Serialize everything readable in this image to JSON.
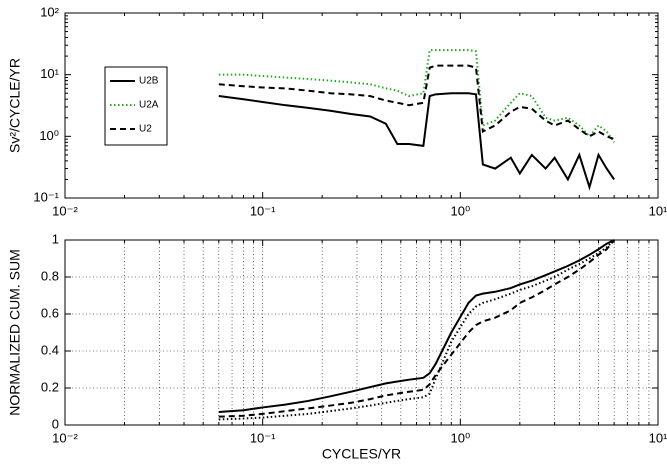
{
  "chart_data": [
    {
      "type": "line",
      "xlog": true,
      "ylog": true,
      "ylabel": "Sv²/CYCLE/YR",
      "x": [
        0.06,
        0.08,
        0.1,
        0.13,
        0.17,
        0.22,
        0.28,
        0.35,
        0.42,
        0.48,
        0.55,
        0.65,
        0.7,
        0.75,
        0.9,
        1.1,
        1.2,
        1.3,
        1.5,
        1.8,
        2.0,
        2.3,
        2.7,
        3.0,
        3.5,
        4.0,
        4.5,
        5.0,
        5.5,
        6.0
      ],
      "series": [
        {
          "name": "U2B",
          "color": "#000000",
          "style": "solid",
          "values": [
            4.5,
            4.0,
            3.6,
            3.2,
            2.9,
            2.6,
            2.3,
            2.1,
            1.6,
            0.75,
            0.75,
            0.7,
            4.5,
            4.8,
            5.0,
            5.0,
            4.8,
            0.35,
            0.3,
            0.45,
            0.25,
            0.5,
            0.3,
            0.45,
            0.2,
            0.5,
            0.15,
            0.5,
            0.3,
            0.2
          ]
        },
        {
          "name": "U2A",
          "color": "#22a822",
          "style": "dotted",
          "values": [
            10,
            10,
            9.5,
            9,
            8.5,
            8,
            7.5,
            7,
            6,
            5.5,
            4.5,
            5,
            25,
            25,
            25,
            25,
            24,
            1.5,
            1.8,
            3.5,
            5,
            4.5,
            2,
            1.8,
            2,
            1.5,
            1,
            1.5,
            1.2,
            0.8
          ]
        },
        {
          "name": "U2",
          "color": "#000000",
          "style": "dashed",
          "values": [
            7,
            6.5,
            6.2,
            6,
            5.5,
            5,
            4.8,
            4.5,
            3.8,
            3.5,
            3.2,
            3.5,
            13,
            14,
            14,
            14,
            13,
            1.2,
            1.5,
            2.5,
            3,
            2.8,
            1.8,
            1.5,
            1.8,
            1.3,
            1.0,
            1.2,
            1.0,
            0.9
          ]
        }
      ],
      "xlim": [
        0.01,
        10
      ],
      "xticks": [
        {
          "value": 0.01,
          "label": "10⁻²"
        },
        {
          "value": 0.1,
          "label": "10⁻¹"
        },
        {
          "value": 1,
          "label": "10⁰"
        },
        {
          "value": 10,
          "label": "10¹"
        }
      ],
      "xminorticks": [
        0.02,
        0.03,
        0.04,
        0.05,
        0.06,
        0.07,
        0.08,
        0.09,
        0.2,
        0.3,
        0.4,
        0.5,
        0.6,
        0.7,
        0.8,
        0.9,
        2,
        3,
        4,
        5,
        6,
        7,
        8,
        9
      ],
      "ylim": [
        0.1,
        100
      ],
      "yticks": [
        {
          "value": 0.1,
          "label": "10⁻¹"
        },
        {
          "value": 1,
          "label": "10⁰"
        },
        {
          "value": 10,
          "label": "10¹"
        },
        {
          "value": 100,
          "label": "10²"
        }
      ],
      "yminorticks": [
        0.2,
        0.3,
        0.4,
        0.5,
        0.6,
        0.7,
        0.8,
        0.9,
        2,
        3,
        4,
        5,
        6,
        7,
        8,
        9,
        20,
        30,
        40,
        50,
        60,
        70,
        80,
        90
      ],
      "grid": false,
      "legend": "upper left"
    },
    {
      "type": "line",
      "xlog": true,
      "ylog": false,
      "ylabel": "NORMALIZED CUM. SUM",
      "xlabel": "CYCLES/YR",
      "x": [
        0.06,
        0.08,
        0.1,
        0.13,
        0.17,
        0.22,
        0.28,
        0.35,
        0.42,
        0.48,
        0.55,
        0.65,
        0.7,
        0.75,
        0.9,
        1.1,
        1.2,
        1.3,
        1.5,
        1.8,
        2.0,
        2.3,
        2.7,
        3.0,
        3.5,
        4.0,
        4.5,
        5.0,
        5.5,
        6.0
      ],
      "series": [
        {
          "color": "#000000",
          "style": "solid",
          "values": [
            0.07,
            0.08,
            0.095,
            0.11,
            0.13,
            0.155,
            0.18,
            0.205,
            0.225,
            0.235,
            0.245,
            0.255,
            0.28,
            0.33,
            0.5,
            0.66,
            0.7,
            0.71,
            0.72,
            0.74,
            0.76,
            0.78,
            0.81,
            0.83,
            0.86,
            0.89,
            0.92,
            0.95,
            0.98,
            1.0
          ]
        },
        {
          "color": "#000000",
          "style": "dotted",
          "values": [
            0.03,
            0.035,
            0.04,
            0.05,
            0.06,
            0.075,
            0.09,
            0.105,
            0.12,
            0.13,
            0.14,
            0.15,
            0.17,
            0.25,
            0.45,
            0.6,
            0.64,
            0.66,
            0.68,
            0.71,
            0.73,
            0.75,
            0.78,
            0.8,
            0.84,
            0.87,
            0.9,
            0.93,
            0.96,
            1.0
          ]
        },
        {
          "color": "#000000",
          "style": "dashed",
          "values": [
            0.045,
            0.05,
            0.06,
            0.075,
            0.09,
            0.105,
            0.12,
            0.14,
            0.16,
            0.17,
            0.18,
            0.19,
            0.22,
            0.27,
            0.38,
            0.5,
            0.54,
            0.56,
            0.58,
            0.62,
            0.66,
            0.69,
            0.73,
            0.76,
            0.8,
            0.84,
            0.88,
            0.92,
            0.95,
            1.0
          ]
        }
      ],
      "xlim": [
        0.01,
        10
      ],
      "xticks": [
        {
          "value": 0.01,
          "label": "10⁻²"
        },
        {
          "value": 0.1,
          "label": "10⁻¹"
        },
        {
          "value": 1,
          "label": "10⁰"
        },
        {
          "value": 10,
          "label": "10¹"
        }
      ],
      "xminorticks": [
        0.02,
        0.03,
        0.04,
        0.05,
        0.06,
        0.07,
        0.08,
        0.09,
        0.2,
        0.3,
        0.4,
        0.5,
        0.6,
        0.7,
        0.8,
        0.9,
        2,
        3,
        4,
        5,
        6,
        7,
        8,
        9
      ],
      "ylim": [
        0,
        1
      ],
      "yticks": [
        0,
        0.2,
        0.4,
        0.6,
        0.8,
        1
      ],
      "grid": true
    }
  ]
}
